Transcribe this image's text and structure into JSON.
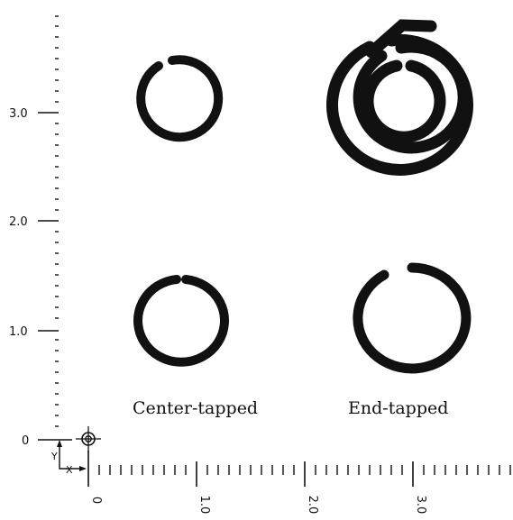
{
  "y_axis": {
    "tick_labels": [
      "3.0",
      "2.0",
      "1.0",
      "0"
    ]
  },
  "x_axis": {
    "tick_labels": [
      "0",
      "1.0",
      "2.0",
      "3.0"
    ]
  },
  "axis_indicator": {
    "y_letter": "Y",
    "x_letter": "X"
  },
  "captions": {
    "center_tapped": "Center-tapped",
    "end_tapped": "End-tapped"
  },
  "colors": {
    "ink": "#111111",
    "background": "#ffffff"
  }
}
